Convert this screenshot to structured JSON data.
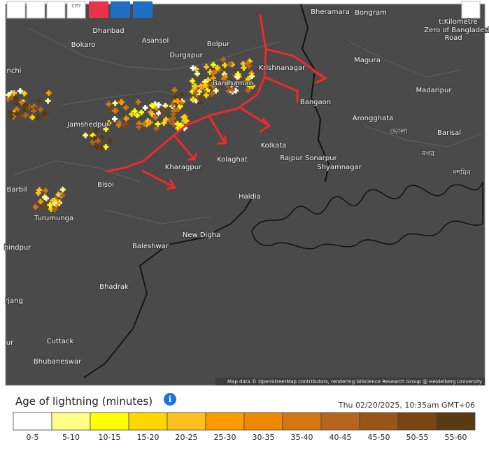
{
  "toolbar": {
    "city_label": "CITY"
  },
  "map": {
    "places": [
      {
        "label": "Bheramara"
      },
      {
        "label": "Bongram"
      },
      {
        "label": "Dhanbad"
      },
      {
        "label": "Asansol"
      },
      {
        "label": "Bolpur"
      },
      {
        "label": "Bokaro"
      },
      {
        "label": "Durgapur"
      },
      {
        "label": "Magura"
      },
      {
        "label": "Krishnanagar"
      },
      {
        "label": "nchi"
      },
      {
        "label": "Bardhaman"
      },
      {
        "label": "Madaripur"
      },
      {
        "label": "Bangaon"
      },
      {
        "label": "Arongghata"
      },
      {
        "label": "Jamshedpur"
      },
      {
        "label": "Barisal"
      },
      {
        "label": "Kolkata"
      },
      {
        "label": "Rajpur Sonarpur"
      },
      {
        "label": "Kolaghat"
      },
      {
        "label": "Shyamnagar"
      },
      {
        "label": "Kharagpur"
      },
      {
        "label": "Bisoi"
      },
      {
        "label": "Barbil"
      },
      {
        "label": "Haldia"
      },
      {
        "label": "Turumunga"
      },
      {
        "label": "New Digha"
      },
      {
        "label": "Baleshwar"
      },
      {
        "label": "bindpur"
      },
      {
        "label": "Bhadrak"
      },
      {
        "label": "rjang"
      },
      {
        "label": "Cuttack"
      },
      {
        "label": "ur"
      },
      {
        "label": "Bhubaneswar"
      },
      {
        "label": "t:Kilometre"
      },
      {
        "label": "Zero of Bangladesh"
      },
      {
        "label": "Road"
      },
      {
        "label": "ভোলা"
      },
      {
        "label": "নগর"
      },
      {
        "label": "দশমিন"
      }
    ],
    "attribution": "Map data © OpenStreetMap contributors, rendering GIScience Research Group @ Heidelberg University"
  },
  "legend": {
    "title": "Age of lightning (minutes)",
    "timestamp": "Thu 02/20/2025, 10:35am GMT+06",
    "bins": [
      {
        "label": "0-5",
        "color": "#ffffff"
      },
      {
        "label": "5-10",
        "color": "#ffff88"
      },
      {
        "label": "10-15",
        "color": "#ffff00"
      },
      {
        "label": "15-20",
        "color": "#ffd700"
      },
      {
        "label": "20-25",
        "color": "#ffbf20"
      },
      {
        "label": "25-30",
        "color": "#ff9a00"
      },
      {
        "label": "30-35",
        "color": "#ee8a00"
      },
      {
        "label": "35-40",
        "color": "#d27810"
      },
      {
        "label": "40-45",
        "color": "#b5651d"
      },
      {
        "label": "45-50",
        "color": "#985515"
      },
      {
        "label": "50-55",
        "color": "#7a4510"
      },
      {
        "label": "55-60",
        "color": "#5a3a10"
      }
    ]
  }
}
